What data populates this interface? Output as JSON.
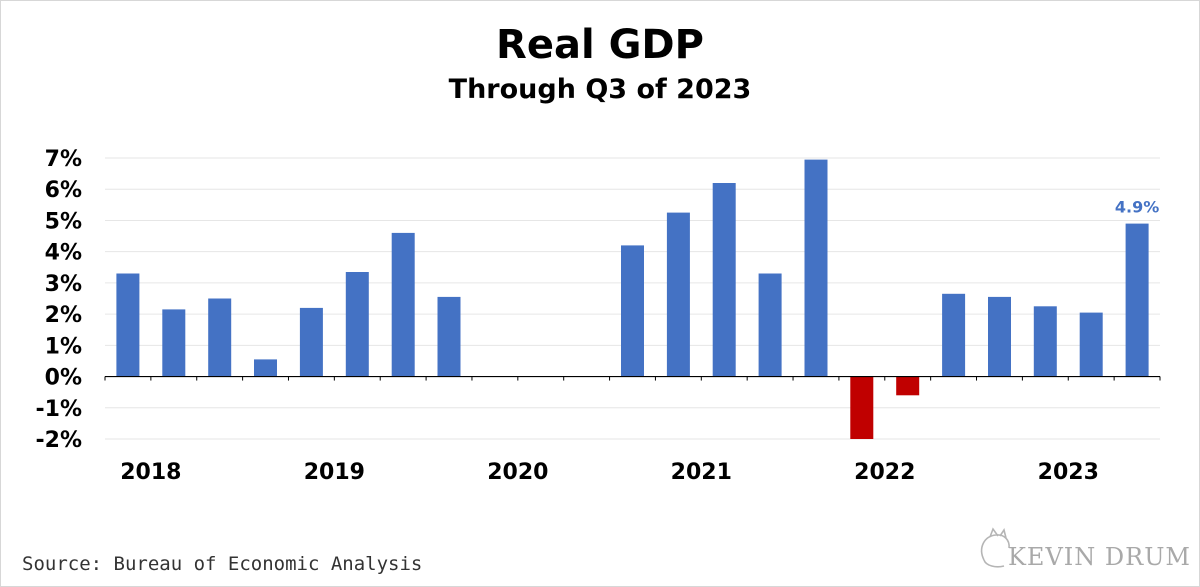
{
  "chart_data": {
    "type": "bar",
    "title": "Real GDP",
    "subtitle": "Through Q3 of 2023",
    "x_tick_labels": [
      "2018",
      "2019",
      "2020",
      "2021",
      "2022",
      "2023"
    ],
    "y_tick_labels": [
      "7%",
      "6%",
      "5%",
      "4%",
      "3%",
      "2%",
      "1%",
      "0%",
      "-1%",
      "-2%"
    ],
    "ylim": [
      -2,
      7
    ],
    "categories": [
      "2018 Q1",
      "2018 Q2",
      "2018 Q3",
      "2018 Q4",
      "2019 Q1",
      "2019 Q2",
      "2019 Q3",
      "2019 Q4",
      "2020 Q1",
      "2020 Q2",
      "2020 Q3",
      "2020 Q4",
      "2021 Q1",
      "2021 Q2",
      "2021 Q3",
      "2021 Q4",
      "2022 Q1",
      "2022 Q2",
      "2022 Q3",
      "2022 Q4",
      "2023 Q1",
      "2023 Q2",
      "2023 Q3"
    ],
    "values": [
      3.3,
      2.15,
      2.5,
      0.55,
      2.2,
      3.35,
      4.6,
      2.55,
      null,
      null,
      null,
      4.2,
      5.25,
      6.2,
      3.3,
      6.95,
      -2.0,
      -0.6,
      2.65,
      2.55,
      2.25,
      2.05,
      4.9
    ],
    "data_labels": {
      "22": "4.9%"
    },
    "colors": {
      "positive": "#4472c4",
      "negative": "#c00000",
      "label": "#4472c4",
      "grid": "#e6e6e6",
      "axis": "#000000"
    },
    "grid": true
  },
  "footer": {
    "source": "Source: Bureau of Economic Analysis",
    "brand": "KEVIN DRUM"
  }
}
